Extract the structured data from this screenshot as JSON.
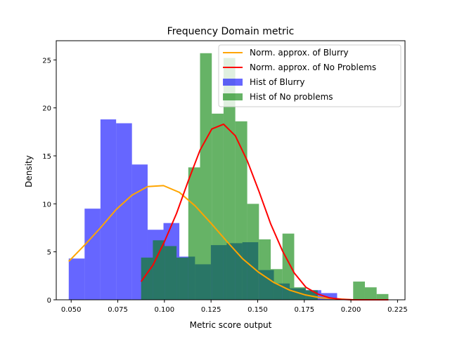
{
  "chart_data": {
    "type": "histogram",
    "title": "Frequency Domain metric",
    "xlabel": "Metric score output",
    "ylabel": "Density",
    "xlim": [
      0.042,
      0.229
    ],
    "ylim": [
      0,
      27
    ],
    "xticks": [
      0.05,
      0.075,
      0.1,
      0.125,
      0.15,
      0.175,
      0.2,
      0.225
    ],
    "xtick_labels": [
      "0.050",
      "0.075",
      "0.100",
      "0.125",
      "0.150",
      "0.175",
      "0.200",
      "0.225"
    ],
    "yticks": [
      0,
      5,
      10,
      15,
      20,
      25
    ],
    "ytick_labels": [
      "0",
      "5",
      "10",
      "15",
      "20",
      "25"
    ],
    "grid": false,
    "legend_position": "top-right",
    "series": [
      {
        "name": "Hist of Blurry",
        "kind": "hist",
        "color": "#0000ff",
        "alpha": 0.6,
        "bin_edges": [
          0.0487,
          0.0572,
          0.0657,
          0.0741,
          0.0826,
          0.091,
          0.0995,
          0.108,
          0.1164,
          0.1249,
          0.1334,
          0.1418,
          0.1503,
          0.1587,
          0.1672,
          0.1757,
          0.1841,
          0.1926
        ],
        "values": [
          4.3,
          9.5,
          18.8,
          18.4,
          14.1,
          7.3,
          8.0,
          4.5,
          3.7,
          5.7,
          5.9,
          6.0,
          3.1,
          1.7,
          1.2,
          1.0,
          0.7
        ]
      },
      {
        "name": "Hist of No problems",
        "kind": "hist",
        "color": "#008000",
        "alpha": 0.6,
        "bin_edges": [
          0.0875,
          0.0938,
          0.1001,
          0.1065,
          0.1128,
          0.1191,
          0.1254,
          0.1317,
          0.138,
          0.1444,
          0.1507,
          0.157,
          0.1633,
          0.1696,
          0.1759,
          0.1822,
          0.1886,
          0.1949,
          0.2012,
          0.2075,
          0.2138,
          0.2201
        ],
        "values": [
          4.4,
          6.2,
          5.6,
          4.4,
          13.8,
          25.7,
          19.4,
          25.2,
          18.6,
          10.0,
          6.3,
          3.2,
          6.9,
          1.3,
          1.0,
          0.0,
          0.0,
          0.0,
          1.9,
          1.3,
          0.6
        ]
      },
      {
        "name": "Norm. approx. of Blurry",
        "kind": "line",
        "color": "#ffa500",
        "x": [
          0.0487,
          0.0572,
          0.0657,
          0.0741,
          0.0826,
          0.091,
          0.0995,
          0.108,
          0.1164,
          0.1249,
          0.1334,
          0.1418,
          0.1503,
          0.1587,
          0.1672,
          0.1757,
          0.1841,
          0.1926,
          0.201
        ],
        "y": [
          4.0,
          5.7,
          7.5,
          9.4,
          10.9,
          11.8,
          11.9,
          11.2,
          9.8,
          8.0,
          6.1,
          4.3,
          2.9,
          1.8,
          1.0,
          0.5,
          0.2,
          0.1,
          0.0
        ]
      },
      {
        "name": "Norm. approx. of No Problems",
        "kind": "line",
        "color": "#ff0000",
        "x": [
          0.0875,
          0.0938,
          0.1001,
          0.1065,
          0.1128,
          0.1191,
          0.1254,
          0.1317,
          0.138,
          0.1444,
          0.1507,
          0.157,
          0.1633,
          0.1696,
          0.1759,
          0.1822,
          0.1886,
          0.1949,
          0.2012,
          0.2075,
          0.2138,
          0.2201
        ],
        "y": [
          1.9,
          3.6,
          6.1,
          9.0,
          12.4,
          15.6,
          17.8,
          18.3,
          17.1,
          14.5,
          11.3,
          7.9,
          5.1,
          2.8,
          1.3,
          0.6,
          0.2,
          0.05,
          0.0,
          0.0,
          0.0,
          0.0
        ]
      }
    ],
    "legend_order": [
      "Norm. approx. of Blurry",
      "Norm. approx. of No Problems",
      "Hist of Blurry",
      "Hist of No problems"
    ]
  }
}
